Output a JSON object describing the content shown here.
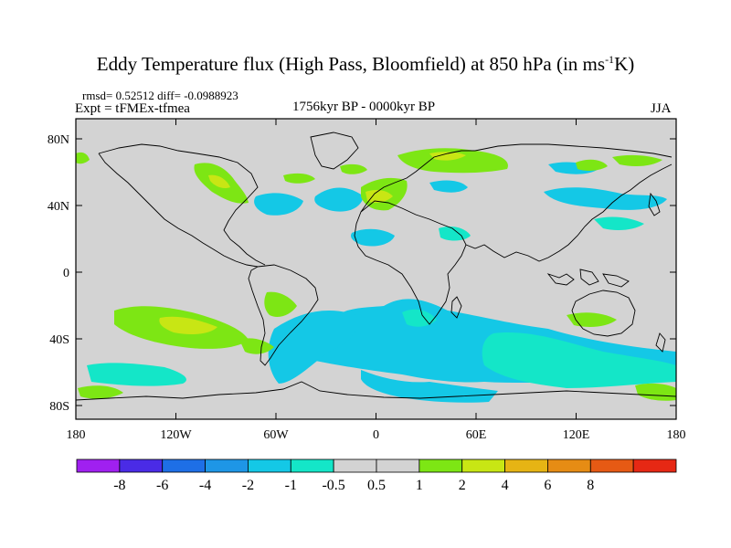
{
  "title": {
    "main": "Eddy Temperature flux (High Pass, Bloomfield) at 850 hPa (in ms",
    "sup": "-1",
    "tail": "K)"
  },
  "stats": "rmsd= 0.52512 diff= -0.0988923",
  "experiment": "Expt = tFMEx-tfmea",
  "period": "1756kyr BP - 0000kyr BP",
  "season": "JJA",
  "map": {
    "projection": "cylindrical equidistant",
    "lon_range": [
      -180,
      180
    ],
    "lat_range": [
      -90,
      90
    ],
    "lat_ticks": [
      "80N",
      "40N",
      "0",
      "40S",
      "80S"
    ],
    "lon_ticks": [
      "180",
      "120W",
      "60W",
      "0",
      "60E",
      "120E",
      "180"
    ],
    "background_color": "#d3d3d3",
    "coastline_color": "#000000"
  },
  "colorbar": {
    "colors": [
      "#a020f0",
      "#4a2be6",
      "#1e6fe6",
      "#1e96e6",
      "#14c8e6",
      "#14e6c8",
      "#d3d3d3",
      "#d3d3d3",
      "#7de614",
      "#c8e614",
      "#e6b414",
      "#e68c14",
      "#e65a14",
      "#e62814"
    ],
    "labels": [
      "-8",
      "-6",
      "-4",
      "-2",
      "-1",
      "-0.5",
      "0.5",
      "1",
      "2",
      "4",
      "6",
      "8"
    ]
  },
  "colors": {
    "cyan": "#14c8e6",
    "light_cyan": "#14e6c8",
    "green": "#7de614",
    "yellow_green": "#c8e614"
  }
}
